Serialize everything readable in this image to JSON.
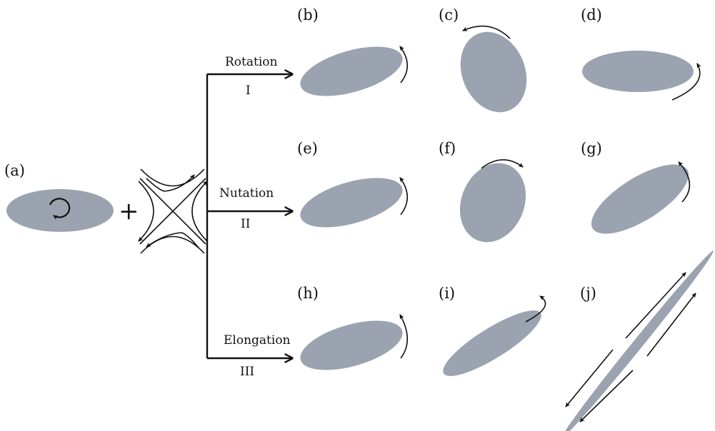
{
  "colors": {
    "ellipse_fill": "#9aa3af",
    "line": "#111111",
    "background": "#ffffff"
  },
  "operator": "+",
  "panels": {
    "a": "(a)",
    "b": "(b)",
    "c": "(c)",
    "d": "(d)",
    "e": "(e)",
    "f": "(f)",
    "g": "(g)",
    "h": "(h)",
    "i": "(i)",
    "j": "(j)"
  },
  "branches": [
    {
      "name": "Rotation",
      "numeral": "I"
    },
    {
      "name": "Nutation",
      "numeral": "II"
    },
    {
      "name": "Elongation",
      "numeral": "III"
    }
  ],
  "icons": {
    "vortex": "circular-arrow-icon",
    "strain": "hyperbolic-strain-field-icon",
    "rotation": "curved-arrow-icon",
    "stretch": "straight-arrow-icon"
  }
}
